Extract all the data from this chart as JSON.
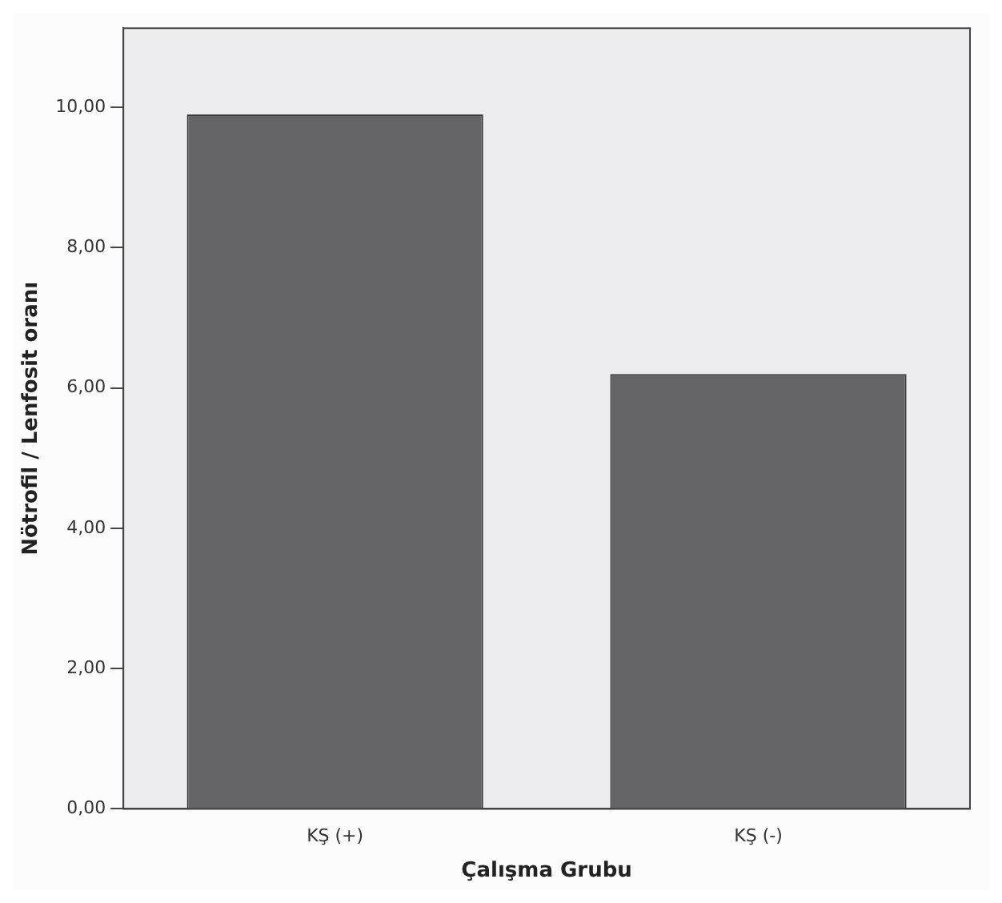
{
  "chart_data": {
    "type": "bar",
    "xlabel": "Çalışma Grubu",
    "ylabel": "Nötrofil / Lenfosit oranı",
    "categories": [
      "KŞ (+)",
      "KŞ (-)"
    ],
    "values": [
      9.9,
      6.2
    ],
    "color": "#646466",
    "ylim": [
      0,
      11.13
    ],
    "yticks": [
      {
        "value": 0,
        "label": "0,00"
      },
      {
        "value": 2,
        "label": "2,00"
      },
      {
        "value": 4,
        "label": "4,00"
      },
      {
        "value": 6,
        "label": "6,00"
      },
      {
        "value": 8,
        "label": "8,00"
      },
      {
        "value": 10,
        "label": "10,00"
      }
    ],
    "grid": false,
    "legend": false
  }
}
